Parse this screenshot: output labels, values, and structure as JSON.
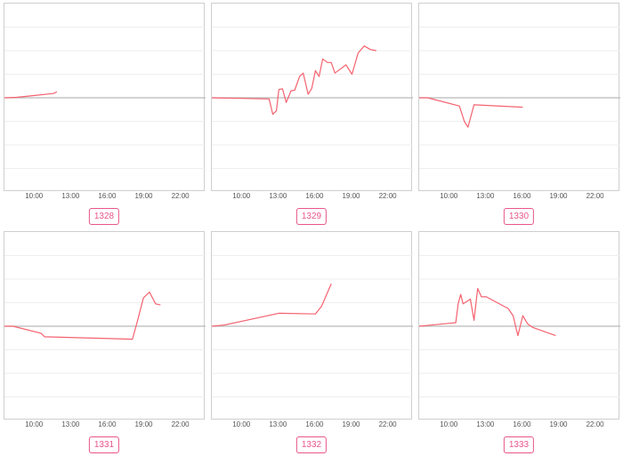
{
  "colors": {
    "line": "#f4626f",
    "baseline": "#b9b9b9",
    "grid": "#eeeeee",
    "badge": "#e8568a"
  },
  "chart_data": [
    {
      "type": "line",
      "label": "1328",
      "xticks": [
        "10:00",
        "13:00",
        "16:00",
        "19:00",
        "22:00"
      ],
      "xlim": [
        7.5,
        24
      ],
      "ylim": [
        -4,
        4
      ],
      "x": [
        7.5,
        8.5,
        10.0,
        11.5,
        11.8
      ],
      "y": [
        0.0,
        0.02,
        0.1,
        0.18,
        0.25
      ]
    },
    {
      "type": "line",
      "label": "1329",
      "xticks": [
        "10:00",
        "13:00",
        "16:00",
        "19:00",
        "22:00"
      ],
      "xlim": [
        7.5,
        24
      ],
      "ylim": [
        -4,
        4
      ],
      "x": [
        7.5,
        12.2,
        12.5,
        12.8,
        13.0,
        13.3,
        13.6,
        14.0,
        14.3,
        14.7,
        15.0,
        15.4,
        15.7,
        16.0,
        16.3,
        16.6,
        17.0,
        17.3,
        17.6,
        18.0,
        18.5,
        19.0,
        19.5,
        20.0,
        20.5,
        21.0
      ],
      "y": [
        0.0,
        -0.05,
        -0.7,
        -0.55,
        0.35,
        0.38,
        -0.2,
        0.3,
        0.32,
        0.9,
        1.05,
        0.15,
        0.4,
        1.15,
        0.9,
        1.65,
        1.5,
        1.5,
        1.05,
        1.2,
        1.4,
        1.0,
        1.9,
        2.2,
        2.05,
        2.0
      ]
    },
    {
      "type": "line",
      "label": "1330",
      "xticks": [
        "10:00",
        "13:00",
        "16:00",
        "19:00",
        "22:00"
      ],
      "xlim": [
        7.5,
        24
      ],
      "ylim": [
        -4,
        4
      ],
      "x": [
        7.5,
        8.2,
        10.8,
        11.2,
        11.5,
        12.0,
        16.0
      ],
      "y": [
        0.0,
        0.0,
        -0.35,
        -1.0,
        -1.25,
        -0.3,
        -0.4
      ]
    },
    {
      "type": "line",
      "label": "1331",
      "xticks": [
        "10:00",
        "13:00",
        "16:00",
        "19:00",
        "22:00"
      ],
      "xlim": [
        7.5,
        24
      ],
      "ylim": [
        -4,
        4
      ],
      "x": [
        7.5,
        8.2,
        10.5,
        10.8,
        18.0,
        18.4,
        18.9,
        19.4,
        19.9,
        20.3
      ],
      "y": [
        0.0,
        0.0,
        -0.3,
        -0.45,
        -0.55,
        0.2,
        1.2,
        1.45,
        0.95,
        0.9
      ]
    },
    {
      "type": "line",
      "label": "1332",
      "xticks": [
        "10:00",
        "13:00",
        "16:00",
        "19:00",
        "22:00"
      ],
      "xlim": [
        7.5,
        24
      ],
      "ylim": [
        -4,
        4
      ],
      "x": [
        7.5,
        8.5,
        13.0,
        16.0,
        16.5,
        17.3
      ],
      "y": [
        0.0,
        0.05,
        0.55,
        0.52,
        0.85,
        1.8
      ]
    },
    {
      "type": "line",
      "label": "1333",
      "xticks": [
        "10:00",
        "13:00",
        "16:00",
        "19:00",
        "22:00"
      ],
      "xlim": [
        7.5,
        24
      ],
      "ylim": [
        -4,
        4
      ],
      "x": [
        7.5,
        8.5,
        10.5,
        10.7,
        10.9,
        11.1,
        11.4,
        11.7,
        12.0,
        12.3,
        12.6,
        13.0,
        14.8,
        15.2,
        15.6,
        16.0,
        16.4,
        16.8,
        18.7
      ],
      "y": [
        0.0,
        0.05,
        0.15,
        0.95,
        1.35,
        0.95,
        1.05,
        1.15,
        0.25,
        1.6,
        1.25,
        1.25,
        0.75,
        0.45,
        -0.4,
        0.45,
        0.1,
        -0.05,
        -0.4
      ]
    }
  ]
}
